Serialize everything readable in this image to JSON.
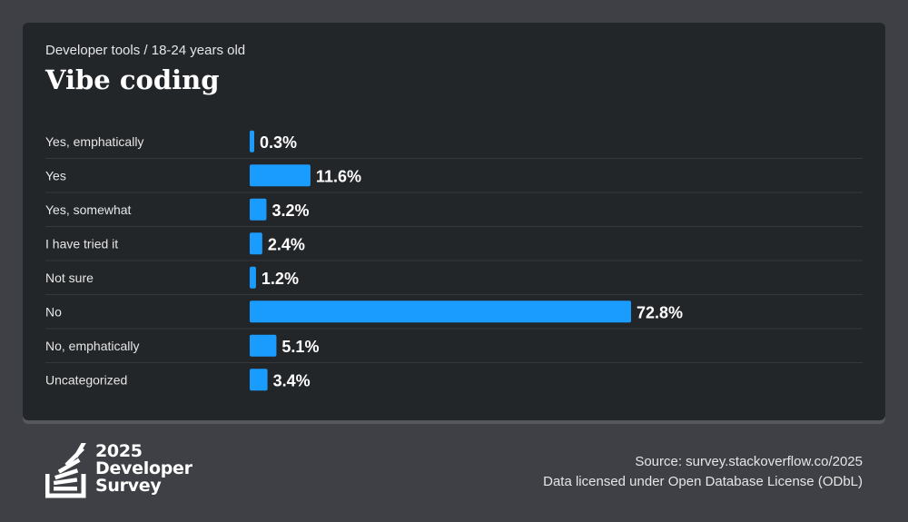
{
  "header": {
    "subtitle": "Developer tools / 18-24 years old",
    "title": "Vibe coding"
  },
  "chart_data": {
    "type": "bar",
    "orientation": "horizontal",
    "title": "Vibe coding",
    "subtitle": "Developer tools / 18-24 years old",
    "categories": [
      "Yes, emphatically",
      "Yes",
      "Yes, somewhat",
      "I have tried it",
      "Not sure",
      "No",
      "No, emphatically",
      "Uncategorized"
    ],
    "values": [
      0.3,
      11.6,
      3.2,
      2.4,
      1.2,
      72.8,
      5.1,
      3.4
    ],
    "value_labels": [
      "0.3%",
      "11.6%",
      "3.2%",
      "2.4%",
      "1.2%",
      "72.8%",
      "5.1%",
      "3.4%"
    ],
    "unit": "%",
    "bar_color": "#1a9cff",
    "grid": false,
    "legend": "none"
  },
  "footer": {
    "logo_year": "2025",
    "logo_line2": "Developer",
    "logo_line3": "Survey",
    "source": "Source: survey.stackoverflow.co/2025",
    "license": "Data licensed under Open Database License (ODbL)"
  },
  "colors": {
    "page_background": "#3e4045",
    "card_background": "#232629",
    "bar": "#1a9cff",
    "divider": "#34373b",
    "text": "#ffffff"
  }
}
